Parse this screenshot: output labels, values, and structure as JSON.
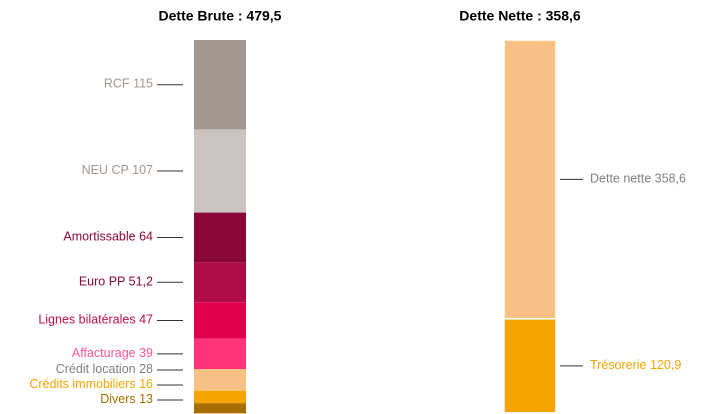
{
  "chart_data": [
    {
      "type": "stacked_bar",
      "title": "Dette Brute : 479,5",
      "ylim": [
        0,
        481
      ],
      "series": [
        {
          "name": "RCF",
          "values": [
            115
          ],
          "value_labels": [
            "115"
          ],
          "color": "#a39890",
          "label_color": "#a39890"
        },
        {
          "name": "NEU CP",
          "values": [
            107
          ],
          "value_labels": [
            "107"
          ],
          "color": "#cbc3bf",
          "label_color": "#a39890"
        },
        {
          "name": "Amortissable",
          "values": [
            64
          ],
          "value_labels": [
            "64"
          ],
          "color": "#8a0838",
          "label_color": "#8a0838"
        },
        {
          "name": "Euro PP",
          "values": [
            51.2
          ],
          "value_labels": [
            "51,2"
          ],
          "color": "#b00c4a",
          "label_color": "#8a0838"
        },
        {
          "name": "Lignes bilatérales",
          "values": [
            47
          ],
          "value_labels": [
            "47"
          ],
          "color": "#e0004e",
          "label_color": "#c0104e"
        },
        {
          "name": "Affacturage",
          "values": [
            39
          ],
          "value_labels": [
            "39"
          ],
          "color": "#ff3377",
          "label_color": "#ff5599"
        },
        {
          "name": "Crédit location",
          "values": [
            28
          ],
          "value_labels": [
            "28"
          ],
          "color": "#f7c084",
          "label_color": "#808080"
        },
        {
          "name": "Crédits immobiliers",
          "values": [
            16
          ],
          "value_labels": [
            "16"
          ],
          "color": "#f5a300",
          "label_color": "#f5a300"
        },
        {
          "name": "Divers",
          "values": [
            13
          ],
          "value_labels": [
            "13"
          ],
          "color": "#a86d00",
          "label_color": "#a86d00"
        }
      ]
    },
    {
      "type": "stacked_bar",
      "title": "Dette Nette : 358,6",
      "ylim": [
        0,
        481
      ],
      "series": [
        {
          "name": "Dette nette",
          "values": [
            358.6
          ],
          "value_labels": [
            "358,6"
          ],
          "color": "#f7c084",
          "label_color": "#808080"
        },
        {
          "name": "Trésorerie",
          "values": [
            120.9
          ],
          "value_labels": [
            "120,9"
          ],
          "color": "#f5a300",
          "label_color": "#f5a300"
        }
      ]
    }
  ]
}
